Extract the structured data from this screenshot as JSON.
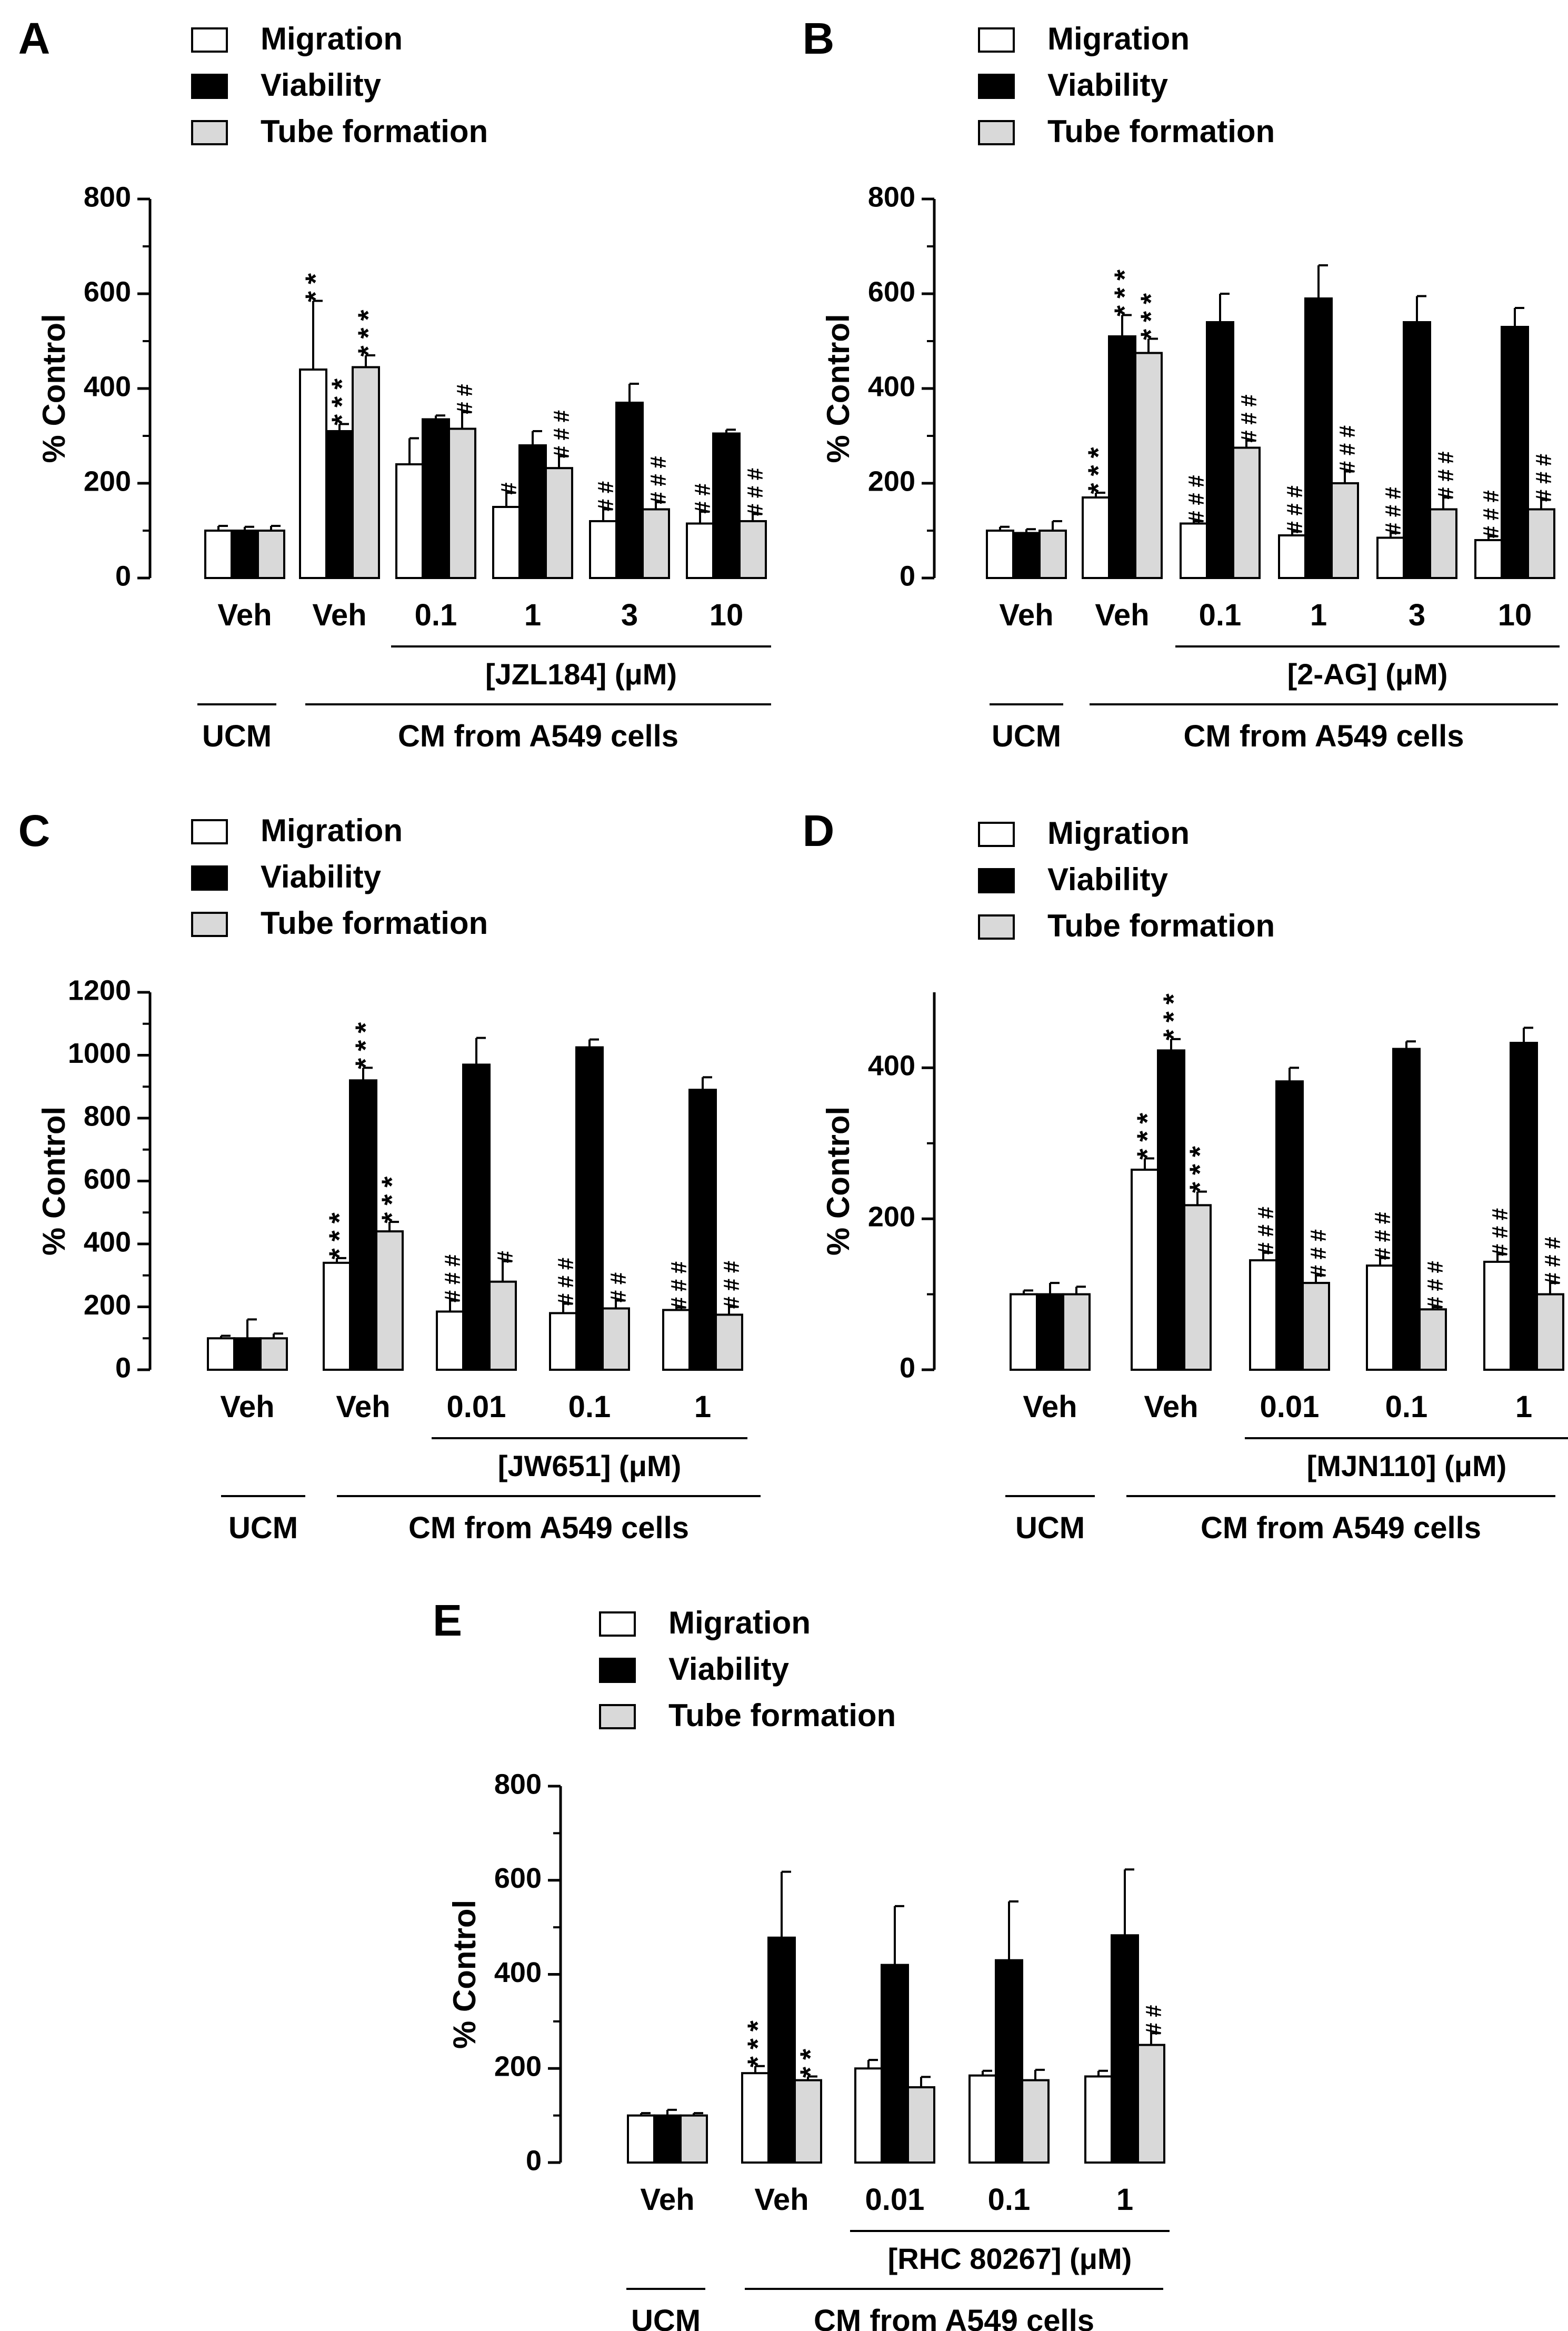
{
  "figure": {
    "colors": {
      "migration": "#ffffff",
      "viability": "#000000",
      "tube_formation": "#d9d9d9",
      "stroke": "#000000"
    }
  },
  "chart_data": [
    {
      "panel": "A",
      "type": "bar",
      "legend": [
        "Migration",
        "Viability",
        "Tube formation"
      ],
      "ylabel": "% Control",
      "ylim": [
        0,
        800
      ],
      "yticks": [
        0,
        200,
        400,
        600,
        800
      ],
      "categories": [
        "Veh",
        "Veh",
        "0.1",
        "1",
        "3",
        "10"
      ],
      "series": [
        {
          "name": "Migration",
          "values": [
            100,
            440,
            240,
            150,
            120,
            115
          ],
          "errors": [
            10,
            145,
            55,
            30,
            25,
            25
          ],
          "annotations": [
            "",
            "**",
            "",
            "#",
            "##",
            "##"
          ]
        },
        {
          "name": "Viability",
          "values": [
            100,
            310,
            335,
            280,
            370,
            305
          ],
          "errors": [
            8,
            15,
            8,
            30,
            40,
            8
          ],
          "annotations": [
            "",
            "***",
            "",
            "",
            "",
            ""
          ]
        },
        {
          "name": "Tube formation",
          "values": [
            100,
            445,
            315,
            232,
            145,
            120
          ],
          "errors": [
            10,
            25,
            35,
            25,
            15,
            15
          ],
          "annotations": [
            "",
            "***",
            "##",
            "###",
            "###",
            "###"
          ]
        }
      ],
      "dose_label": "[JZL184] (μM)",
      "group_labels": [
        "UCM",
        "CM from A549 cells"
      ]
    },
    {
      "panel": "B",
      "type": "bar",
      "legend": [
        "Migration",
        "Viability",
        "Tube formation"
      ],
      "ylabel": "% Control",
      "ylim": [
        0,
        800
      ],
      "yticks": [
        0,
        200,
        400,
        600,
        800
      ],
      "categories": [
        "Veh",
        "Veh",
        "0.1",
        "1",
        "3",
        "10"
      ],
      "series": [
        {
          "name": "Migration",
          "values": [
            100,
            170,
            115,
            90,
            85,
            80
          ],
          "errors": [
            8,
            10,
            5,
            8,
            10,
            8
          ],
          "annotations": [
            "",
            "***",
            "###",
            "###",
            "###",
            "###"
          ]
        },
        {
          "name": "Viability",
          "values": [
            95,
            510,
            540,
            590,
            540,
            530
          ],
          "errors": [
            8,
            45,
            60,
            70,
            55,
            40
          ],
          "annotations": [
            "",
            "***",
            "",
            "",
            "",
            ""
          ]
        },
        {
          "name": "Tube formation",
          "values": [
            100,
            475,
            275,
            200,
            145,
            145
          ],
          "errors": [
            20,
            30,
            15,
            25,
            25,
            20
          ],
          "annotations": [
            "",
            "***",
            "###",
            "###",
            "###",
            "###"
          ]
        }
      ],
      "dose_label": "[2-AG] (μM)",
      "group_labels": [
        "UCM",
        "CM from A549 cells"
      ]
    },
    {
      "panel": "C",
      "type": "bar",
      "legend": [
        "Migration",
        "Viability",
        "Tube formation"
      ],
      "ylabel": "% Control",
      "ylim": [
        0,
        1200
      ],
      "yticks": [
        0,
        200,
        400,
        600,
        800,
        1000,
        1200
      ],
      "categories": [
        "Veh",
        "Veh",
        "0.01",
        "0.1",
        "1"
      ],
      "series": [
        {
          "name": "Migration",
          "values": [
            100,
            340,
            185,
            180,
            190
          ],
          "errors": [
            8,
            15,
            35,
            30,
            8
          ],
          "annotations": [
            "",
            "***",
            "###",
            "###",
            "###"
          ]
        },
        {
          "name": "Viability",
          "values": [
            100,
            920,
            970,
            1025,
            890
          ],
          "errors": [
            60,
            40,
            85,
            25,
            40
          ],
          "annotations": [
            "",
            "***",
            "",
            "",
            ""
          ]
        },
        {
          "name": "Tube formation",
          "values": [
            100,
            440,
            280,
            195,
            175
          ],
          "errors": [
            15,
            30,
            65,
            25,
            25
          ],
          "annotations": [
            "",
            "***",
            "#",
            "##",
            "###"
          ]
        }
      ],
      "dose_label": "[JW651] (μM)",
      "group_labels": [
        "UCM",
        "CM from A549 cells"
      ]
    },
    {
      "panel": "D",
      "type": "bar",
      "legend": [
        "Migration",
        "Viability",
        "Tube formation"
      ],
      "ylabel": "% Control",
      "ylim": [
        0,
        500
      ],
      "yticks": [
        0,
        200,
        400
      ],
      "categories": [
        "Veh",
        "Veh",
        "0.01",
        "0.1",
        "1"
      ],
      "series": [
        {
          "name": "Migration",
          "values": [
            100,
            265,
            145,
            138,
            143
          ],
          "errors": [
            5,
            15,
            10,
            10,
            10
          ],
          "annotations": [
            "",
            "***",
            "###",
            "###",
            "###"
          ]
        },
        {
          "name": "Viability",
          "values": [
            100,
            423,
            382,
            425,
            433
          ],
          "errors": [
            15,
            15,
            18,
            10,
            20
          ],
          "annotations": [
            "",
            "***",
            "",
            "",
            ""
          ]
        },
        {
          "name": "Tube formation",
          "values": [
            100,
            218,
            115,
            80,
            100
          ],
          "errors": [
            10,
            18,
            10,
            3,
            15
          ],
          "annotations": [
            "",
            "***",
            "###",
            "###",
            "###"
          ]
        }
      ],
      "dose_label": "[MJN110] (μM)",
      "group_labels": [
        "UCM",
        "CM from A549 cells"
      ]
    },
    {
      "panel": "E",
      "type": "bar",
      "legend": [
        "Migration",
        "Viability",
        "Tube formation"
      ],
      "ylabel": "% Control",
      "ylim": [
        0,
        800
      ],
      "yticks": [
        0,
        200,
        400,
        600,
        800
      ],
      "categories": [
        "Veh",
        "Veh",
        "0.01",
        "0.1",
        "1"
      ],
      "series": [
        {
          "name": "Migration",
          "values": [
            100,
            190,
            200,
            185,
            183
          ],
          "errors": [
            5,
            15,
            18,
            10,
            12
          ],
          "annotations": [
            "",
            "***",
            "",
            "",
            ""
          ]
        },
        {
          "name": "Viability",
          "values": [
            100,
            478,
            420,
            430,
            483
          ],
          "errors": [
            12,
            140,
            125,
            125,
            140
          ],
          "annotations": [
            "",
            "",
            "",
            "",
            ""
          ]
        },
        {
          "name": "Tube formation",
          "values": [
            100,
            175,
            160,
            175,
            250
          ],
          "errors": [
            5,
            8,
            22,
            22,
            25
          ],
          "annotations": [
            "",
            "**",
            "",
            "",
            "##"
          ]
        }
      ],
      "dose_label": "[RHC 80267] (μM)",
      "group_labels": [
        "UCM",
        "CM from A549 cells"
      ]
    }
  ]
}
